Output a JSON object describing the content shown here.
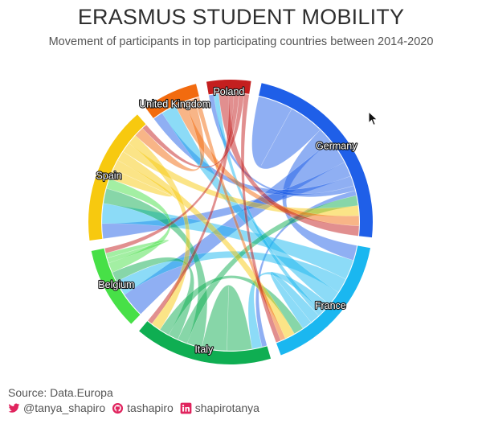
{
  "header": {
    "title": "ERASMUS STUDENT MOBILITY",
    "subtitle": "Movement of participants in top participating countries between 2014-2020"
  },
  "footer": {
    "source": "Source: Data.Europa",
    "twitter": "@tanya_shapiro",
    "github": "tashapiro",
    "linkedin": "shapirotanya"
  },
  "colors": {
    "Germany": "#1f5fe8",
    "France": "#1ab7f0",
    "Italy": "#0fae52",
    "Belgium": "#47e047",
    "Spain": "#f7c90f",
    "United Kingdom": "#f26b0f",
    "Poland": "#c41f1f"
  },
  "chart_data": {
    "type": "chord",
    "countries": [
      "Germany",
      "France",
      "Italy",
      "Belgium",
      "Spain",
      "United Kingdom",
      "Poland"
    ],
    "flows": [
      {
        "from": "Germany",
        "to": "Germany",
        "value": 7
      },
      {
        "from": "Germany",
        "to": "France",
        "value": 3
      },
      {
        "from": "Germany",
        "to": "Belgium",
        "value": 5
      },
      {
        "from": "Germany",
        "to": "Spain",
        "value": 3
      },
      {
        "from": "Germany",
        "to": "United Kingdom",
        "value": 2
      },
      {
        "from": "Germany",
        "to": "Poland",
        "value": 1
      },
      {
        "from": "Germany",
        "to": "Italy",
        "value": 1
      },
      {
        "from": "France",
        "to": "Spain",
        "value": 4
      },
      {
        "from": "France",
        "to": "Belgium",
        "value": 3
      },
      {
        "from": "France",
        "to": "United Kingdom",
        "value": 3
      },
      {
        "from": "France",
        "to": "Italy",
        "value": 2
      },
      {
        "from": "France",
        "to": "Poland",
        "value": 1
      },
      {
        "from": "France",
        "to": "France",
        "value": 2
      },
      {
        "from": "Italy",
        "to": "Italy",
        "value": 5
      },
      {
        "from": "Italy",
        "to": "Spain",
        "value": 3
      },
      {
        "from": "Italy",
        "to": "Germany",
        "value": 2
      },
      {
        "from": "Italy",
        "to": "Belgium",
        "value": 2
      },
      {
        "from": "Italy",
        "to": "France",
        "value": 2
      },
      {
        "from": "Belgium",
        "to": "Spain",
        "value": 2
      },
      {
        "from": "Belgium",
        "to": "Belgium",
        "value": 1
      },
      {
        "from": "Spain",
        "to": "Spain",
        "value": 2
      },
      {
        "from": "Spain",
        "to": "France",
        "value": 2
      },
      {
        "from": "Spain",
        "to": "Germany",
        "value": 2
      },
      {
        "from": "Spain",
        "to": "Italy",
        "value": 2
      },
      {
        "from": "United Kingdom",
        "to": "Germany",
        "value": 2
      },
      {
        "from": "United Kingdom",
        "to": "Spain",
        "value": 2
      },
      {
        "from": "United Kingdom",
        "to": "France",
        "value": 1
      },
      {
        "from": "Poland",
        "to": "Germany",
        "value": 2
      },
      {
        "from": "Poland",
        "to": "Italy",
        "value": 1
      },
      {
        "from": "Poland",
        "to": "Belgium",
        "value": 1
      },
      {
        "from": "Poland",
        "to": "Spain",
        "value": 1
      },
      {
        "from": "Poland",
        "to": "France",
        "value": 1
      }
    ]
  }
}
